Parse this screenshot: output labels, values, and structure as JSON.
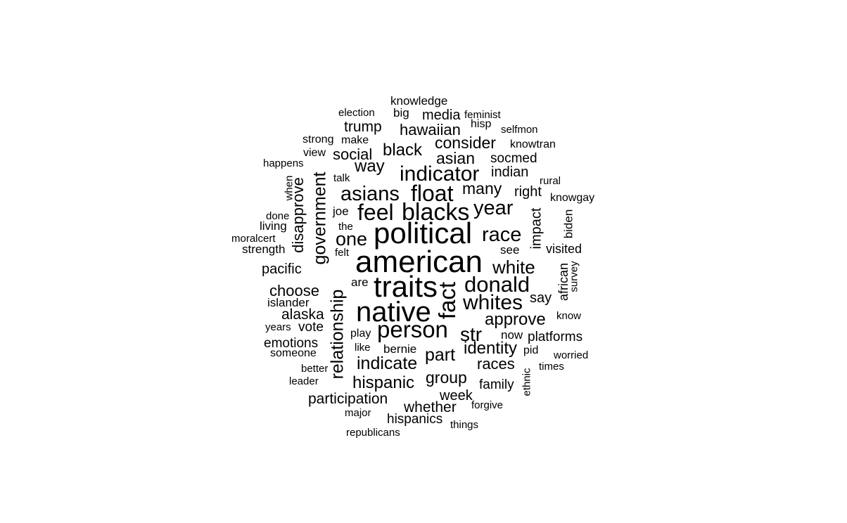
{
  "cloud": {
    "text_color": "#000000",
    "background": "#ffffff",
    "words": [
      {
        "text": "american"
      },
      {
        "text": "political"
      },
      {
        "text": "traits"
      },
      {
        "text": "native"
      },
      {
        "text": "person"
      },
      {
        "text": "fact"
      },
      {
        "text": "donald"
      },
      {
        "text": "whites"
      },
      {
        "text": "blacks"
      },
      {
        "text": "float"
      },
      {
        "text": "feel"
      },
      {
        "text": "indicator"
      },
      {
        "text": "asians"
      },
      {
        "text": "year"
      },
      {
        "text": "race"
      },
      {
        "text": "white"
      },
      {
        "text": "government"
      },
      {
        "text": "relationship"
      },
      {
        "text": "one"
      },
      {
        "text": "str"
      },
      {
        "text": "approve"
      },
      {
        "text": "identity"
      },
      {
        "text": "indicate"
      },
      {
        "text": "hispanic"
      },
      {
        "text": "part"
      },
      {
        "text": "group"
      },
      {
        "text": "races"
      },
      {
        "text": "disapprove"
      },
      {
        "text": "black"
      },
      {
        "text": "way"
      },
      {
        "text": "many"
      },
      {
        "text": "asian"
      },
      {
        "text": "consider"
      },
      {
        "text": "hawaiian"
      },
      {
        "text": "social"
      },
      {
        "text": "choose"
      },
      {
        "text": "alaska"
      },
      {
        "text": "whether"
      },
      {
        "text": "participation"
      },
      {
        "text": "trump"
      },
      {
        "text": "impact"
      },
      {
        "text": "indian"
      },
      {
        "text": "right"
      },
      {
        "text": "say"
      },
      {
        "text": "platforms"
      },
      {
        "text": "family"
      },
      {
        "text": "week"
      },
      {
        "text": "media"
      },
      {
        "text": "socmed"
      },
      {
        "text": "pacific"
      },
      {
        "text": "emotions"
      },
      {
        "text": "vote"
      },
      {
        "text": "hispanics"
      },
      {
        "text": "visited"
      },
      {
        "text": "african"
      },
      {
        "text": "islander"
      },
      {
        "text": "knowledge"
      },
      {
        "text": "biden"
      },
      {
        "text": "bernie"
      },
      {
        "text": "now"
      },
      {
        "text": "see"
      },
      {
        "text": "big"
      },
      {
        "text": "living"
      },
      {
        "text": "strength"
      },
      {
        "text": "someone"
      },
      {
        "text": "are"
      },
      {
        "text": "joe"
      },
      {
        "text": "play"
      },
      {
        "text": "pid"
      },
      {
        "text": "knowgay"
      },
      {
        "text": "knowtran"
      },
      {
        "text": "strong"
      },
      {
        "text": "make"
      },
      {
        "text": "view"
      },
      {
        "text": "hisp"
      },
      {
        "text": "feminist"
      },
      {
        "text": "election"
      },
      {
        "text": "selfmon"
      },
      {
        "text": "happens"
      },
      {
        "text": "talk"
      },
      {
        "text": "when"
      },
      {
        "text": "done"
      },
      {
        "text": "the"
      },
      {
        "text": "moralcert"
      },
      {
        "text": "felt"
      },
      {
        "text": "rural"
      },
      {
        "text": "survey"
      },
      {
        "text": "years"
      },
      {
        "text": "like"
      },
      {
        "text": "better"
      },
      {
        "text": "leader"
      },
      {
        "text": "major"
      },
      {
        "text": "republicans"
      },
      {
        "text": "things"
      },
      {
        "text": "forgive"
      },
      {
        "text": "ethnic"
      },
      {
        "text": "times"
      },
      {
        "text": "worried"
      },
      {
        "text": "know"
      }
    ]
  }
}
